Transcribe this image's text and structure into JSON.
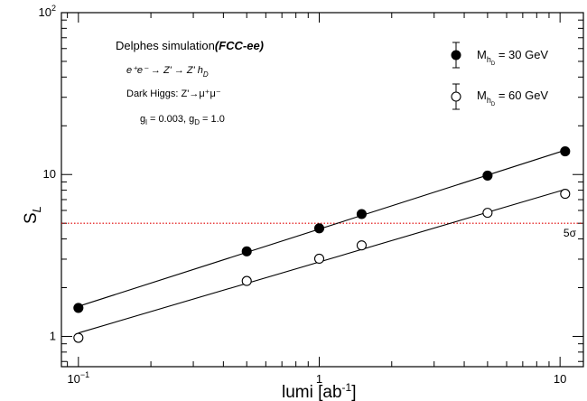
{
  "chart_data": {
    "type": "scatter",
    "xlabel": {
      "base": "lumi [ab",
      "sup": "-1",
      "tail": "]"
    },
    "ylabel": {
      "base": "S",
      "sub": "L"
    },
    "xscale": "log",
    "yscale": "log",
    "xlim": [
      0.085,
      12.5
    ],
    "ylim": [
      0.65,
      100
    ],
    "grid": false,
    "legend_position": "top-right",
    "x_tick_labels": [
      {
        "base": "10",
        "sup": "−1"
      },
      {
        "base": "1",
        "sup": ""
      },
      {
        "base": "10",
        "sup": ""
      }
    ],
    "y_tick_labels": [
      {
        "base": "1",
        "sup": ""
      },
      {
        "base": "10",
        "sup": ""
      },
      {
        "base": "10",
        "sup": "2"
      }
    ],
    "annotations": {
      "line1": {
        "plain": "Delphes simulation",
        "bold": "(FCC-ee)"
      },
      "line2": "e⁺e⁻ → Z' → Z' h",
      "line2_sub": "D",
      "line3": "Dark Higgs: Z'→μ⁺μ⁻",
      "line4": {
        "g": "g",
        "sub_l": "l",
        "mid": " = 0.003, g",
        "sub_D": "D",
        "tail": " = 1.0"
      }
    },
    "threshold": {
      "value": 5,
      "label": "5σ",
      "color": "#e00000"
    },
    "series": [
      {
        "name": {
          "base": "M",
          "sub": "h",
          "subsub": "D",
          "tail": " = 30 GeV"
        },
        "marker": "filled",
        "x": [
          0.1,
          0.5,
          1,
          1.5,
          5,
          10.5
        ],
        "y": [
          1.5,
          3.35,
          4.65,
          5.7,
          9.85,
          13.9
        ]
      },
      {
        "name": {
          "base": "M",
          "sub": "h",
          "subsub": "D",
          "tail": " = 60 GeV"
        },
        "marker": "open",
        "x": [
          0.1,
          0.5,
          1,
          1.5,
          5,
          10.5
        ],
        "y": [
          0.98,
          2.2,
          3.02,
          3.65,
          5.8,
          7.6
        ]
      }
    ]
  }
}
